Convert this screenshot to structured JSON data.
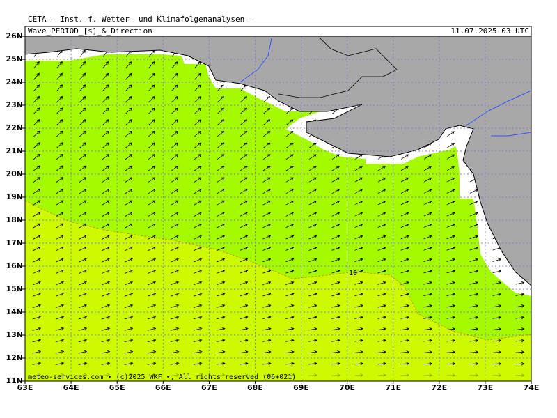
{
  "header": {
    "title": "CETA — Inst. f. Wetter— und Klimafolgenanalysen —",
    "product": "Wave_PERIOD_[s]_&_Direction",
    "valid_time": "11.07.2025 03 UTC"
  },
  "axes": {
    "longitude_labels": [
      "63E",
      "64E",
      "65E",
      "66E",
      "67E",
      "68E",
      "69E",
      "70E",
      "71E",
      "72E",
      "73E",
      "74E"
    ],
    "latitude_labels": [
      "11N",
      "12N",
      "13N",
      "14N",
      "15N",
      "16N",
      "17N",
      "18N",
      "19N",
      "20N",
      "21N",
      "22N",
      "23N",
      "24N",
      "25N",
      "26N"
    ]
  },
  "contour_labels": [
    "10"
  ],
  "footer": "meteo-services.com • (c)2025 WKF •, All rights reserved (06+021)"
}
